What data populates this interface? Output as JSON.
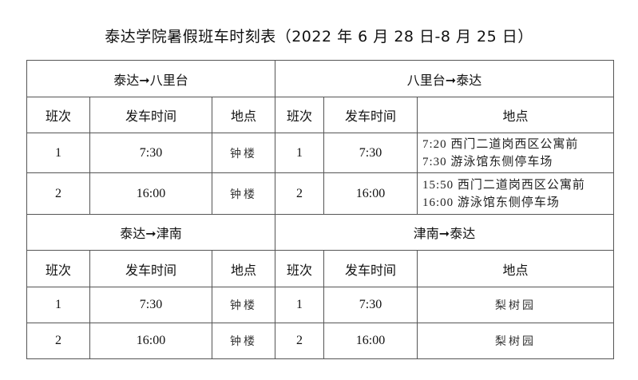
{
  "title": "泰达学院暑假班车时刻表（2022 年 6 月 28 日-8 月 25 日）",
  "columns": {
    "no": "班次",
    "time": "发车时间",
    "place": "地点"
  },
  "sections": [
    {
      "left": {
        "route": "泰达➞八里台",
        "rows": [
          {
            "no": "1",
            "time": "7:30",
            "place": "钟楼"
          },
          {
            "no": "2",
            "time": "16:00",
            "place": "钟楼"
          }
        ]
      },
      "right": {
        "route": "八里台➞泰达",
        "rows": [
          {
            "no": "1",
            "time": "7:30",
            "place": [
              "7:20 西门二道岗西区公寓前",
              "7:30 游泳馆东侧停车场"
            ]
          },
          {
            "no": "2",
            "time": "16:00",
            "place": [
              "15:50 西门二道岗西区公寓前",
              "16:00 游泳馆东侧停车场"
            ]
          }
        ]
      }
    },
    {
      "left": {
        "route": "泰达➞津南",
        "rows": [
          {
            "no": "1",
            "time": "7:30",
            "place": "钟楼"
          },
          {
            "no": "2",
            "time": "16:00",
            "place": "钟楼"
          }
        ]
      },
      "right": {
        "route": "津南➞泰达",
        "rows": [
          {
            "no": "1",
            "time": "7:30",
            "place": "梨树园"
          },
          {
            "no": "2",
            "time": "16:00",
            "place": "梨树园"
          }
        ]
      }
    }
  ]
}
